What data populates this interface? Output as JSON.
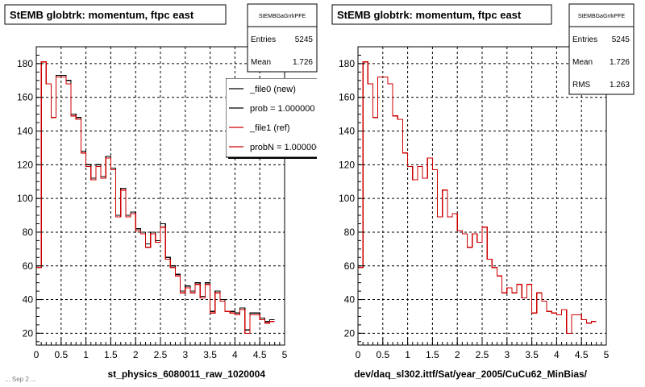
{
  "footer_text": "... Sep 2 ...",
  "chart_data": [
    {
      "type": "histogram",
      "title": "StEMB globtrk: momentum, ftpc east",
      "xlabel": "st_physics_6080011_raw_1020004",
      "ylabel": "",
      "xlim": [
        0,
        5
      ],
      "ylim": [
        13,
        190
      ],
      "grid": true,
      "x_ticks": [
        "0",
        "0.5",
        "1",
        "1.5",
        "2",
        "2.5",
        "3",
        "3.5",
        "4",
        "4.5",
        "5"
      ],
      "y_ticks": [
        "20",
        "40",
        "60",
        "80",
        "100",
        "120",
        "140",
        "160",
        "180"
      ],
      "bin_width": 0.1,
      "stats_box": {
        "name": "StEMBGaGrrkPFE",
        "rows": [
          {
            "label": "Entries",
            "value": "5245"
          },
          {
            "label": "Mean",
            "value": "1.726"
          }
        ]
      },
      "legend": {
        "placement": "top-right",
        "entries": [
          {
            "label": "_file0 (new)",
            "color": "#000000"
          },
          {
            "label": "prob = 1.000000",
            "color": "#000000"
          },
          {
            "label": "_file1 (ref)",
            "color": "#cc0000"
          },
          {
            "label": "probN = 1.000000",
            "color": "#cc0000"
          }
        ]
      },
      "series": [
        {
          "color": "#000000",
          "values": [
            59,
            181,
            168,
            148,
            173,
            173,
            170,
            150,
            148,
            128,
            120,
            112,
            120,
            113,
            125,
            118,
            90,
            106,
            90,
            92,
            82,
            80,
            73,
            80,
            75,
            85,
            65,
            60,
            55,
            45,
            48,
            45,
            50,
            42,
            50,
            33,
            45,
            40,
            33,
            33,
            32,
            35,
            22,
            32,
            32,
            29,
            27,
            28
          ]
        },
        {
          "color": "#cc0000",
          "values": [
            59,
            181,
            168,
            148,
            172,
            172,
            168,
            149,
            147,
            127,
            119,
            111,
            119,
            112,
            124,
            117,
            89,
            105,
            89,
            91,
            81,
            79,
            71,
            79,
            74,
            83,
            64,
            59,
            54,
            44,
            47,
            44,
            49,
            41,
            49,
            32,
            44,
            39,
            33,
            32,
            31,
            34,
            20,
            31,
            31,
            28,
            26,
            27
          ]
        }
      ]
    },
    {
      "type": "histogram",
      "title": "StEMB globtrk: momentum, ftpc east",
      "xlabel": "dev/daq_sl302.ittf/Sat/year_2005/CuCu62_MinBias/",
      "ylabel": "",
      "xlim": [
        0,
        5
      ],
      "ylim": [
        13,
        190
      ],
      "grid": true,
      "x_ticks": [
        "0",
        "0.5",
        "1",
        "1.5",
        "2",
        "2.5",
        "3",
        "3.5",
        "4",
        "4.5",
        "5"
      ],
      "y_ticks": [
        "20",
        "40",
        "60",
        "80",
        "100",
        "120",
        "140",
        "160",
        "180"
      ],
      "bin_width": 0.1,
      "stats_box": {
        "name": "StEMBGaGrrkPFE",
        "rows": [
          {
            "label": "Entries",
            "value": "5245"
          },
          {
            "label": "Mean",
            "value": "1.726"
          },
          {
            "label": "RMS",
            "value": "1.263"
          }
        ]
      },
      "legend": null,
      "series": [
        {
          "color": "#cc0000",
          "values": [
            59,
            181,
            168,
            148,
            172,
            172,
            168,
            149,
            147,
            127,
            119,
            111,
            119,
            112,
            124,
            117,
            89,
            105,
            89,
            91,
            81,
            79,
            71,
            79,
            74,
            83,
            64,
            59,
            54,
            44,
            47,
            44,
            49,
            41,
            49,
            32,
            44,
            39,
            33,
            32,
            31,
            34,
            20,
            31,
            31,
            28,
            26,
            27
          ]
        }
      ]
    }
  ]
}
